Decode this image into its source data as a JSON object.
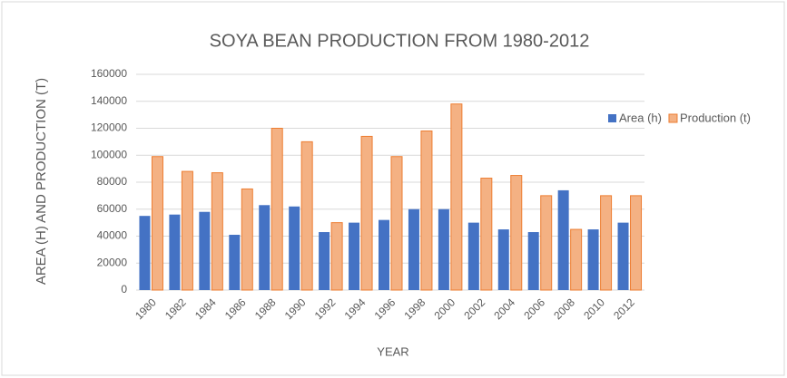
{
  "chart_data": {
    "type": "bar",
    "title": "SOYA BEAN PRODUCTION FROM 1980-2012",
    "x_label": "YEAR",
    "y_label": "AREA (H) AND PRODUCTION (T)",
    "categories": [
      "1980",
      "1982",
      "1984",
      "1986",
      "1988",
      "1990",
      "1992",
      "1994",
      "1996",
      "1998",
      "2000",
      "2002",
      "2004",
      "2006",
      "2008",
      "2010",
      "2012"
    ],
    "series": [
      {
        "name": "Area (h)",
        "color": "#4472c4",
        "values": [
          55000,
          56000,
          58000,
          41000,
          63000,
          62000,
          43000,
          50000,
          52000,
          60000,
          60000,
          50000,
          45000,
          43000,
          74000,
          45000,
          50000
        ]
      },
      {
        "name": "Production (t)",
        "color": "#f4b183",
        "values": [
          99000,
          88000,
          87000,
          75000,
          120000,
          110000,
          50000,
          114000,
          99000,
          118000,
          138000,
          83000,
          85000,
          70000,
          45000,
          70000,
          70000
        ]
      }
    ],
    "ylim": [
      0,
      160000
    ],
    "yticks": [
      0,
      20000,
      40000,
      60000,
      80000,
      100000,
      120000,
      140000,
      160000
    ],
    "grid": true,
    "legend": "right"
  }
}
